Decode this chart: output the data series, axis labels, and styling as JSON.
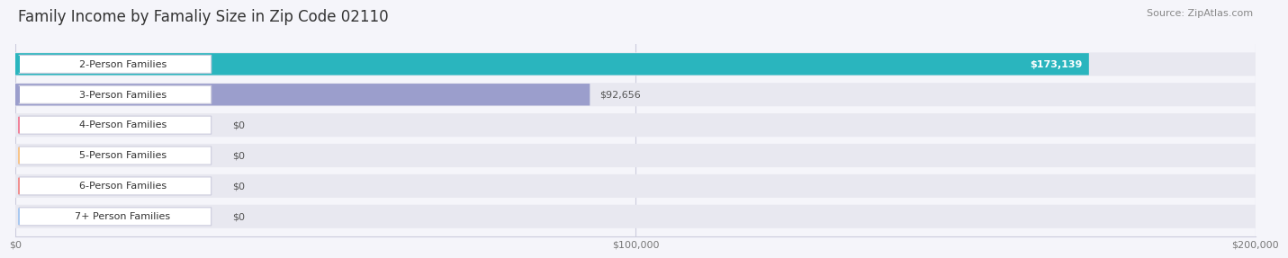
{
  "title": "Family Income by Famaliy Size in Zip Code 02110",
  "source": "Source: ZipAtlas.com",
  "categories": [
    "2-Person Families",
    "3-Person Families",
    "4-Person Families",
    "5-Person Families",
    "6-Person Families",
    "7+ Person Families"
  ],
  "values": [
    173139,
    92656,
    0,
    0,
    0,
    0
  ],
  "value_labels": [
    "$173,139",
    "$92,656",
    "$0",
    "$0",
    "$0",
    "$0"
  ],
  "bar_colors": [
    "#2ab5be",
    "#9b9ecc",
    "#f0829a",
    "#f7c48a",
    "#f09090",
    "#a8c8f0"
  ],
  "zero_bar_colors": [
    "#f0829a",
    "#f7c48a",
    "#f09090",
    "#a8c8f0"
  ],
  "xlim": [
    0,
    200000
  ],
  "xtick_labels": [
    "$0",
    "$100,000",
    "$200,000"
  ],
  "row_bg_color": "#e8e8f0",
  "row_gap_color": "#f5f5fa",
  "title_fontsize": 12,
  "source_fontsize": 8,
  "label_fontsize": 8,
  "value_fontsize": 8,
  "figure_width": 14.06,
  "figure_height": 3.05
}
